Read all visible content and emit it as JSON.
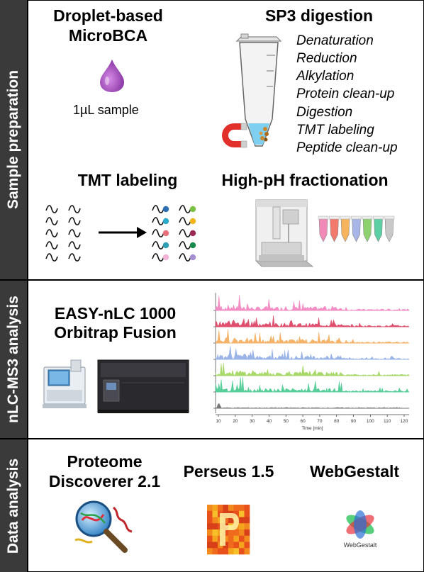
{
  "sections": {
    "sample_preparation": "Sample preparation",
    "nlc_ms3": "nLC-MS3 analysis",
    "data_analysis": "Data analysis"
  },
  "microbca": {
    "title_line1": "Droplet-based",
    "title_line2": "MicroBCA",
    "sample_label": "1µL sample",
    "drop_color": "#a24fc0"
  },
  "sp3": {
    "title": "SP3 digestion",
    "steps": [
      "Denaturation",
      "Reduction",
      "Alkylation",
      "Protein clean-up",
      "Digestion",
      "TMT labeling",
      "Peptide clean-up"
    ]
  },
  "tmt": {
    "title": "TMT labeling",
    "tag_colors": [
      "#2d6fb5",
      "#7ac143",
      "#29a9c9",
      "#f2b31b",
      "#e8707a",
      "#9c2a56",
      "#2d9fb2",
      "#1a8a4c",
      "#f2b4d6",
      "#a48fd1"
    ]
  },
  "hph": {
    "title": "High-pH fractionation",
    "tube_colors": [
      "#f28ab7",
      "#f27a6c",
      "#f7b45e",
      "#a7b6e6",
      "#8ed16f",
      "#5ccfa5",
      "#c9c9c9"
    ]
  },
  "lcms": {
    "title_line1": "EASY-nLC 1000",
    "title_line2": "Orbitrap Fusion",
    "trace_colors": [
      "#f28ec4",
      "#e0506e",
      "#f5b36a",
      "#9ab4e8",
      "#a8d86a",
      "#58cf9a",
      "#777777"
    ],
    "xlabel": "Time [min]",
    "xticks": [
      "10",
      "20",
      "30",
      "40",
      "50",
      "60",
      "70",
      "80",
      "90",
      "100",
      "110",
      "120"
    ]
  },
  "data": {
    "pd_line1": "Proteome",
    "pd_line2": "Discoverer 2.1",
    "perseus": "Perseus 1.5",
    "webgestalt": "WebGestalt",
    "webgestalt_logo_text": "WebGestalt"
  }
}
